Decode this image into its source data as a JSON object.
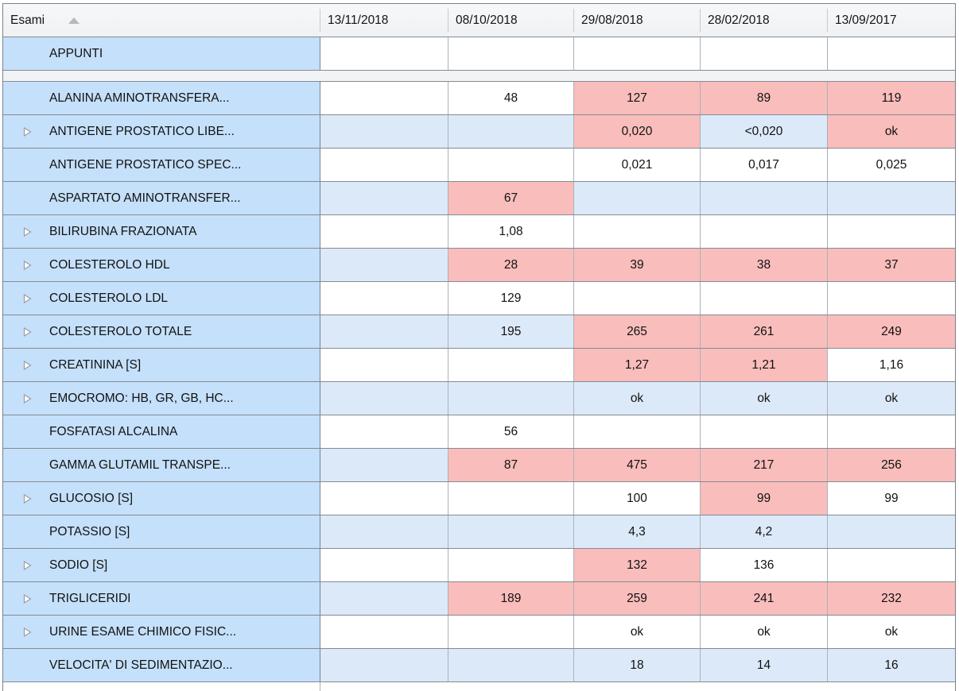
{
  "colors": {
    "label_column_bg": "#c5e0fa",
    "row_alt_bg": "#dce9f8",
    "row_bg": "#ffffff",
    "alert_bg": "#f9bdbc",
    "header_bg": "#f1f2f4",
    "separator_row_bg": "#f2f3f5",
    "grid_border": "#848b94"
  },
  "grid": {
    "first_column_header": "Esami",
    "sort_icon": "sort-ascending-triangle",
    "expander_icon": "expand-right-triangle",
    "date_columns": [
      "13/11/2018",
      "08/10/2018",
      "29/08/2018",
      "28/02/2018",
      "13/09/2017"
    ],
    "appunti_row": {
      "label": "APPUNTI",
      "expandable": false,
      "cells": [
        {
          "v": ""
        },
        {
          "v": ""
        },
        {
          "v": ""
        },
        {
          "v": ""
        },
        {
          "v": ""
        }
      ]
    },
    "rows": [
      {
        "label": "ALANINA AMINOTRANSFERA...",
        "expandable": false,
        "cells": [
          {
            "v": ""
          },
          {
            "v": "48"
          },
          {
            "v": "127",
            "alert": true
          },
          {
            "v": "89",
            "alert": true
          },
          {
            "v": "119",
            "alert": true
          }
        ]
      },
      {
        "label": "ANTIGENE PROSTATICO LIBE...",
        "expandable": true,
        "cells": [
          {
            "v": ""
          },
          {
            "v": ""
          },
          {
            "v": "0,020",
            "alert": true
          },
          {
            "v": "<0,020"
          },
          {
            "v": "ok",
            "alert": true
          }
        ]
      },
      {
        "label": "ANTIGENE PROSTATICO SPEC...",
        "expandable": false,
        "cells": [
          {
            "v": ""
          },
          {
            "v": ""
          },
          {
            "v": "0,021"
          },
          {
            "v": "0,017"
          },
          {
            "v": "0,025"
          }
        ]
      },
      {
        "label": "ASPARTATO AMINOTRANSFER...",
        "expandable": false,
        "cells": [
          {
            "v": ""
          },
          {
            "v": "67",
            "alert": true
          },
          {
            "v": ""
          },
          {
            "v": ""
          },
          {
            "v": ""
          }
        ]
      },
      {
        "label": "BILIRUBINA FRAZIONATA",
        "expandable": true,
        "cells": [
          {
            "v": ""
          },
          {
            "v": "1,08"
          },
          {
            "v": ""
          },
          {
            "v": ""
          },
          {
            "v": ""
          }
        ]
      },
      {
        "label": "COLESTEROLO HDL",
        "expandable": true,
        "cells": [
          {
            "v": ""
          },
          {
            "v": "28",
            "alert": true
          },
          {
            "v": "39",
            "alert": true
          },
          {
            "v": "38",
            "alert": true
          },
          {
            "v": "37",
            "alert": true
          }
        ]
      },
      {
        "label": "COLESTEROLO LDL",
        "expandable": true,
        "cells": [
          {
            "v": ""
          },
          {
            "v": "129"
          },
          {
            "v": ""
          },
          {
            "v": ""
          },
          {
            "v": ""
          }
        ]
      },
      {
        "label": "COLESTEROLO TOTALE",
        "expandable": true,
        "cells": [
          {
            "v": ""
          },
          {
            "v": "195"
          },
          {
            "v": "265",
            "alert": true
          },
          {
            "v": "261",
            "alert": true
          },
          {
            "v": "249",
            "alert": true
          }
        ]
      },
      {
        "label": "CREATININA [S]",
        "expandable": true,
        "cells": [
          {
            "v": ""
          },
          {
            "v": ""
          },
          {
            "v": "1,27",
            "alert": true
          },
          {
            "v": "1,21",
            "alert": true
          },
          {
            "v": "1,16"
          }
        ]
      },
      {
        "label": "EMOCROMO: HB, GR, GB, HC...",
        "expandable": true,
        "cells": [
          {
            "v": ""
          },
          {
            "v": ""
          },
          {
            "v": "ok"
          },
          {
            "v": "ok"
          },
          {
            "v": "ok"
          }
        ]
      },
      {
        "label": "FOSFATASI ALCALINA",
        "expandable": false,
        "cells": [
          {
            "v": ""
          },
          {
            "v": "56"
          },
          {
            "v": ""
          },
          {
            "v": ""
          },
          {
            "v": ""
          }
        ]
      },
      {
        "label": "GAMMA GLUTAMIL TRANSPE...",
        "expandable": false,
        "cells": [
          {
            "v": ""
          },
          {
            "v": "87",
            "alert": true
          },
          {
            "v": "475",
            "alert": true
          },
          {
            "v": "217",
            "alert": true
          },
          {
            "v": "256",
            "alert": true
          }
        ]
      },
      {
        "label": "GLUCOSIO [S]",
        "expandable": true,
        "cells": [
          {
            "v": ""
          },
          {
            "v": ""
          },
          {
            "v": "100"
          },
          {
            "v": "99",
            "alert": true
          },
          {
            "v": "99"
          }
        ]
      },
      {
        "label": "POTASSIO [S]",
        "expandable": false,
        "cells": [
          {
            "v": ""
          },
          {
            "v": ""
          },
          {
            "v": "4,3"
          },
          {
            "v": "4,2"
          },
          {
            "v": ""
          }
        ]
      },
      {
        "label": "SODIO [S]",
        "expandable": true,
        "cells": [
          {
            "v": ""
          },
          {
            "v": ""
          },
          {
            "v": "132",
            "alert": true
          },
          {
            "v": "136"
          },
          {
            "v": ""
          }
        ]
      },
      {
        "label": "TRIGLICERIDI",
        "expandable": true,
        "cells": [
          {
            "v": ""
          },
          {
            "v": "189",
            "alert": true
          },
          {
            "v": "259",
            "alert": true
          },
          {
            "v": "241",
            "alert": true
          },
          {
            "v": "232",
            "alert": true
          }
        ]
      },
      {
        "label": "URINE ESAME CHIMICO FISIC...",
        "expandable": true,
        "cells": [
          {
            "v": ""
          },
          {
            "v": ""
          },
          {
            "v": "ok"
          },
          {
            "v": "ok"
          },
          {
            "v": "ok"
          }
        ]
      },
      {
        "label": "VELOCITA' DI SEDIMENTAZIO...",
        "expandable": false,
        "cells": [
          {
            "v": ""
          },
          {
            "v": ""
          },
          {
            "v": "18"
          },
          {
            "v": "14"
          },
          {
            "v": "16"
          }
        ]
      }
    ]
  }
}
